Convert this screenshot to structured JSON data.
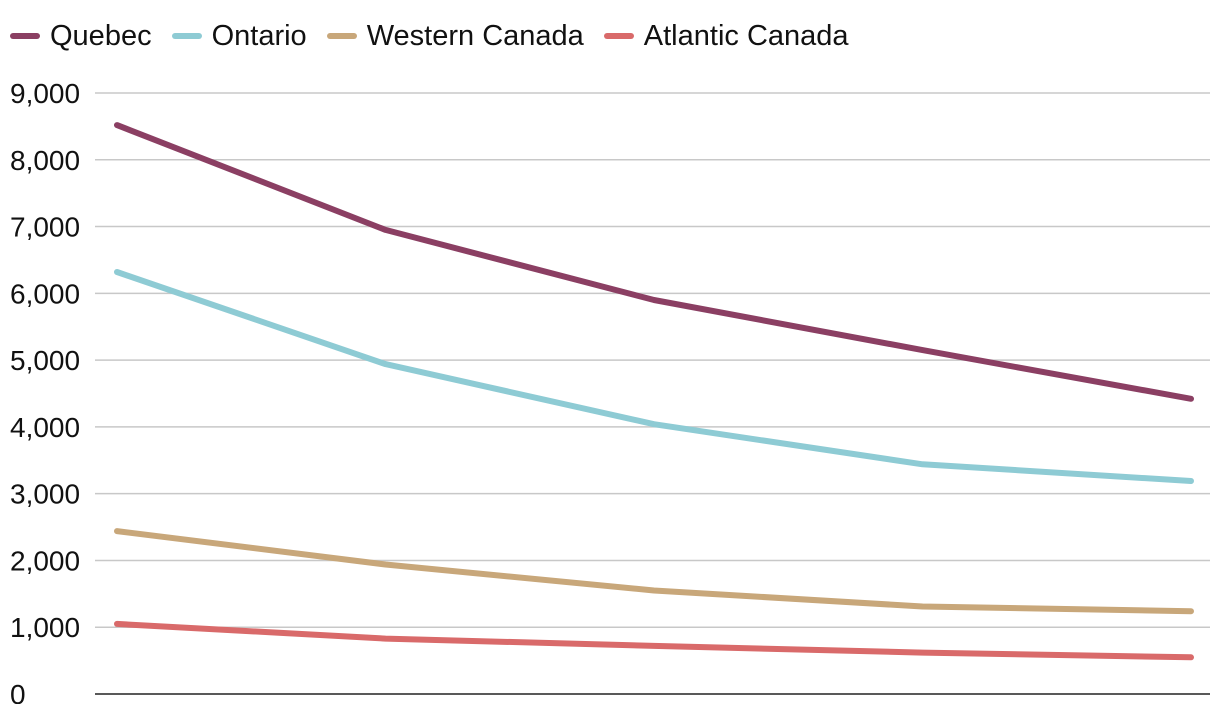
{
  "chart_data": {
    "type": "line",
    "title": "",
    "xlabel": "",
    "ylabel": "",
    "ylim": [
      0,
      9000
    ],
    "yticks": [
      0,
      1000,
      2000,
      3000,
      4000,
      5000,
      6000,
      7000,
      8000,
      9000
    ],
    "ytick_labels": [
      "0",
      "1,000",
      "2,000",
      "3,000",
      "4,000",
      "5,000",
      "6,000",
      "7,000",
      "8,000",
      "9,000"
    ],
    "grid": true,
    "legend_position": "top-left",
    "series": [
      {
        "name": "Quebec",
        "color": "#8b3f63",
        "values": [
          8520,
          6950,
          5900,
          5150,
          4420
        ]
      },
      {
        "name": "Ontario",
        "color": "#8ecbd4",
        "values": [
          6320,
          4940,
          4040,
          3440,
          3190
        ]
      },
      {
        "name": "Western Canada",
        "color": "#c8a77a",
        "values": [
          2440,
          1940,
          1550,
          1310,
          1240
        ]
      },
      {
        "name": "Atlantic Canada",
        "color": "#d96a6a",
        "values": [
          1050,
          830,
          720,
          620,
          550
        ]
      }
    ]
  }
}
